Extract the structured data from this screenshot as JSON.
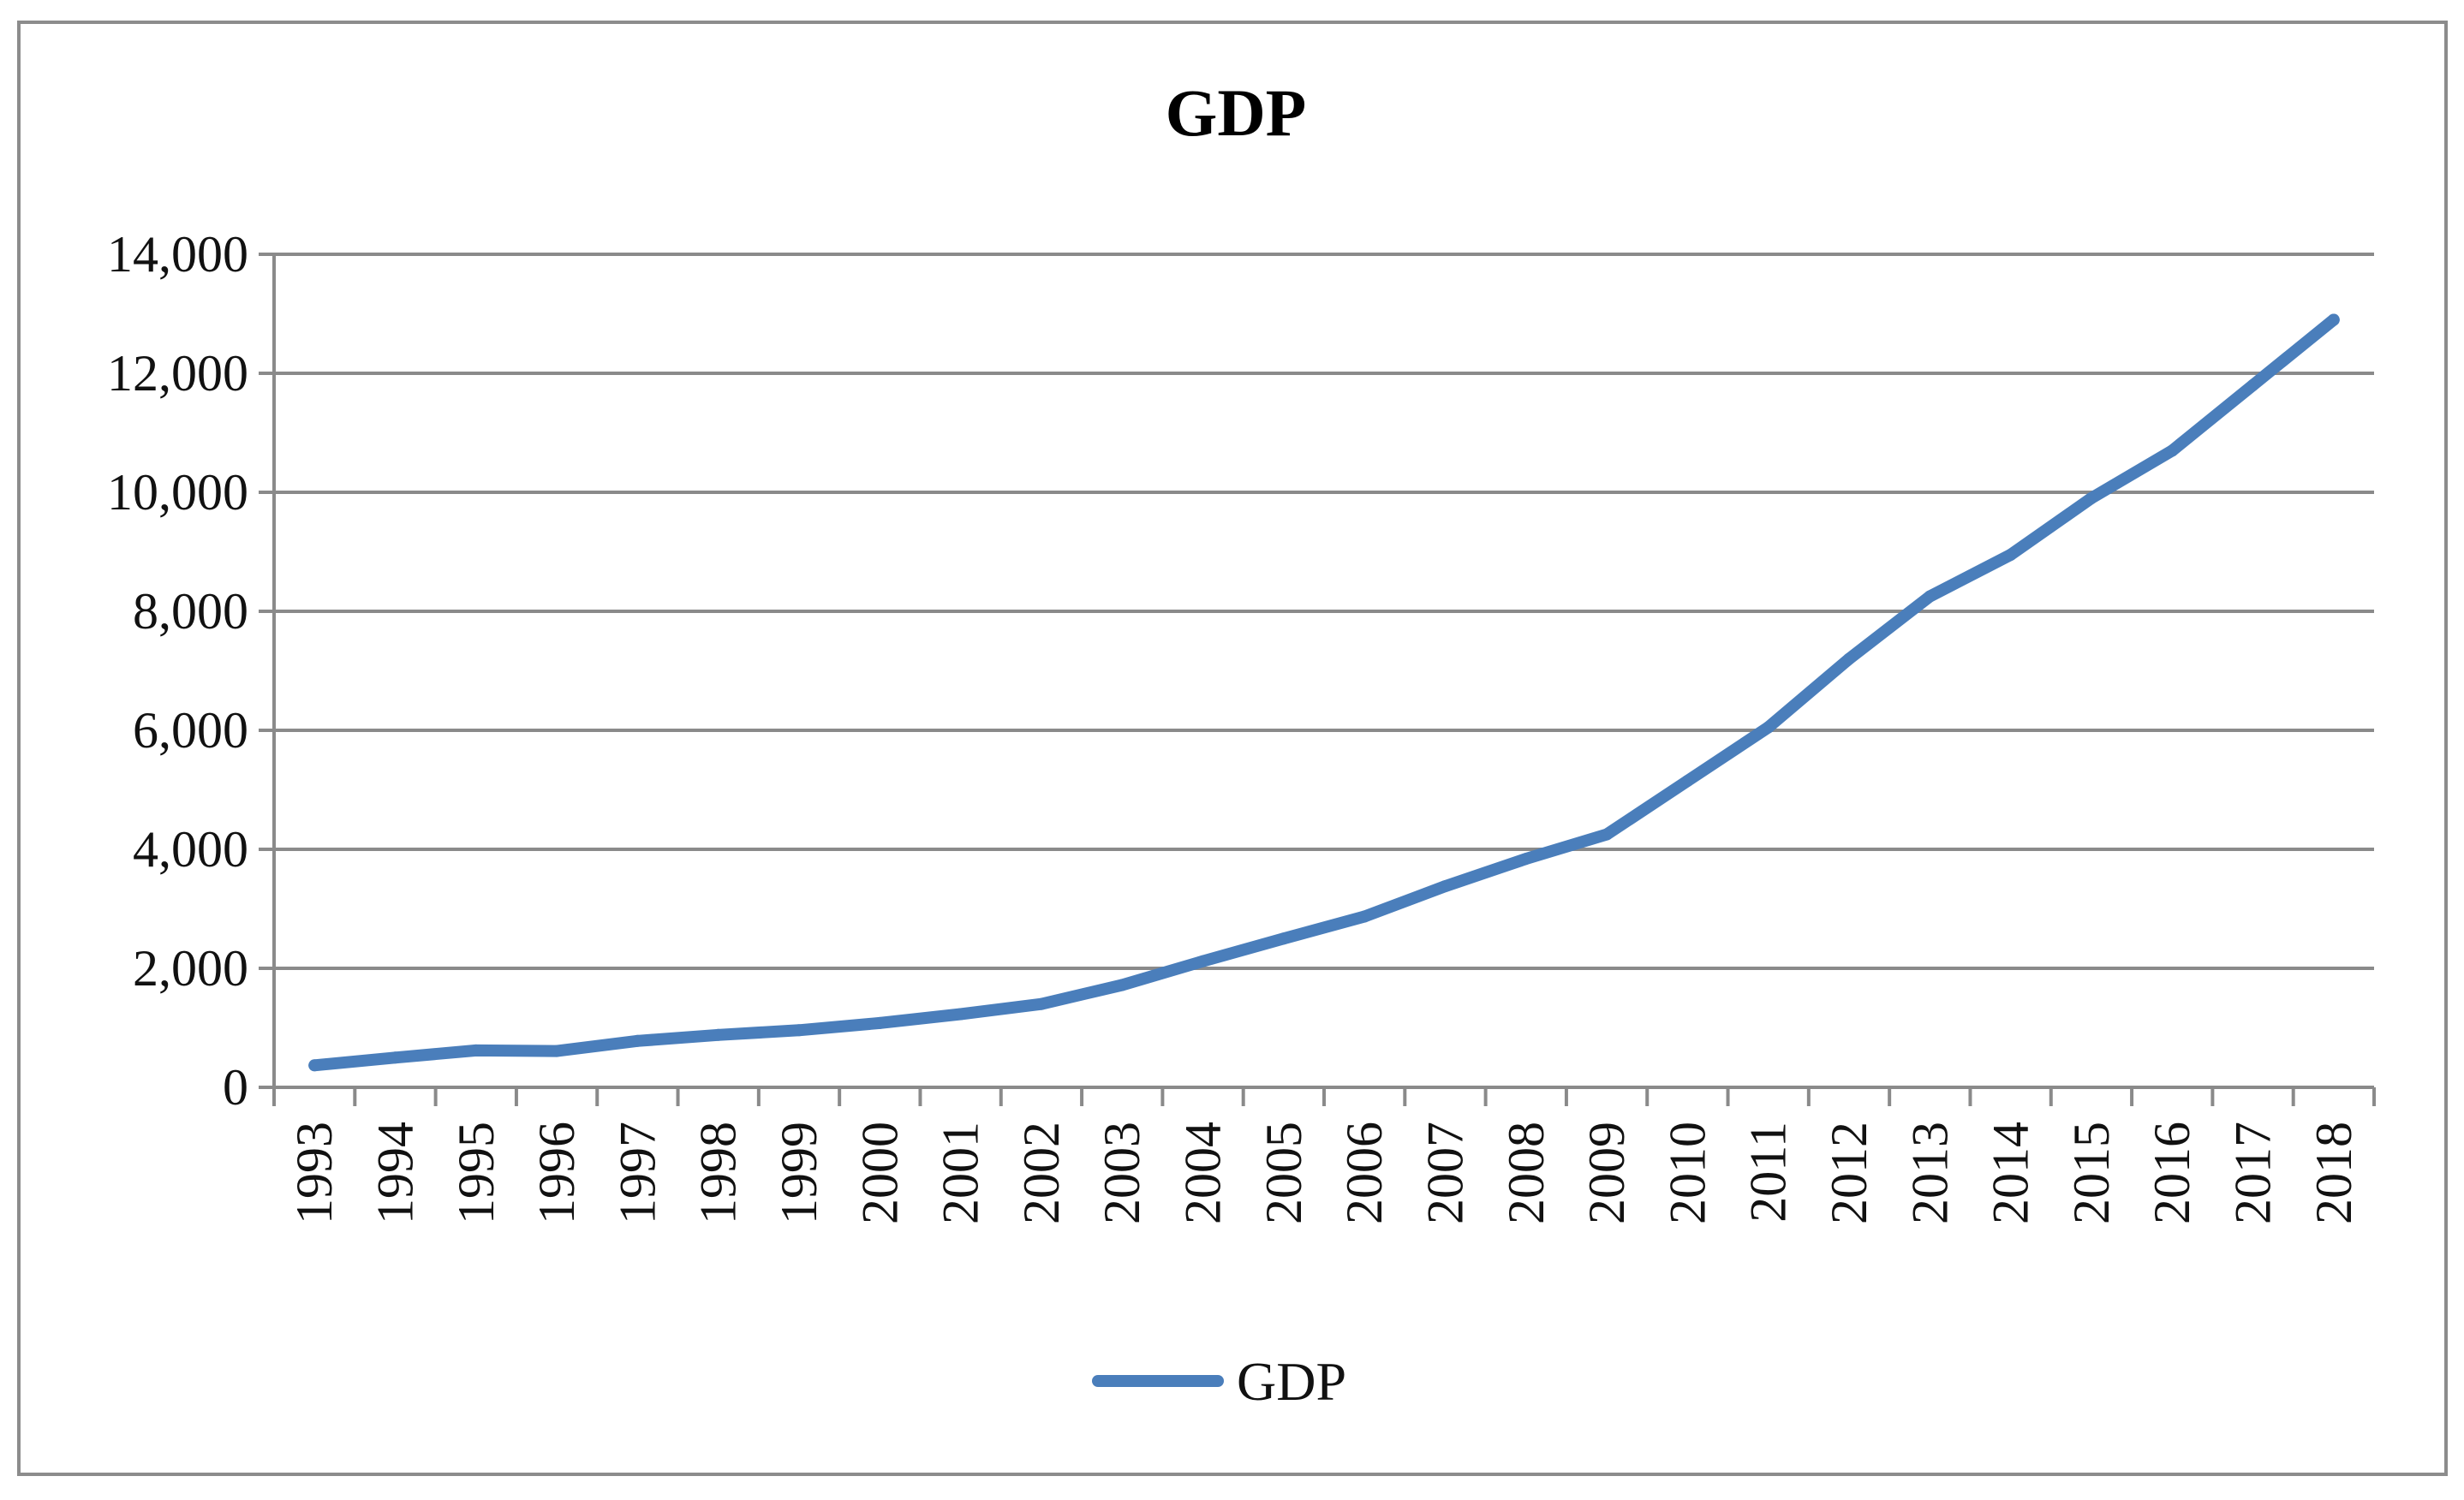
{
  "chart_data": {
    "type": "line",
    "title": "GDP",
    "xlabel": "",
    "ylabel": "",
    "ylim": [
      0,
      14000
    ],
    "yticks": [
      0,
      2000,
      4000,
      6000,
      8000,
      10000,
      12000,
      14000
    ],
    "ytick_labels": [
      "0",
      "2,000",
      "4,000",
      "6,000",
      "8,000",
      "10,000",
      "12,000",
      "14,000"
    ],
    "categories": [
      "1993",
      "1994",
      "1995",
      "1996",
      "1997",
      "1998",
      "1999",
      "2000",
      "2001",
      "2002",
      "2003",
      "2004",
      "2005",
      "2006",
      "2007",
      "2008",
      "2009",
      "2010",
      "2011",
      "2012",
      "2013",
      "2014",
      "2015",
      "2016",
      "2017",
      "2018"
    ],
    "series": [
      {
        "name": "GDP",
        "color": "#4a7ebb",
        "values": [
          370,
          500,
          620,
          610,
          780,
          880,
          960,
          1080,
          1230,
          1400,
          1720,
          2120,
          2500,
          2870,
          3380,
          3840,
          4250,
          5150,
          6050,
          7200,
          8250,
          8950,
          9900,
          10700,
          11800,
          12900
        ]
      }
    ],
    "grid": true,
    "legend_position": "bottom"
  }
}
